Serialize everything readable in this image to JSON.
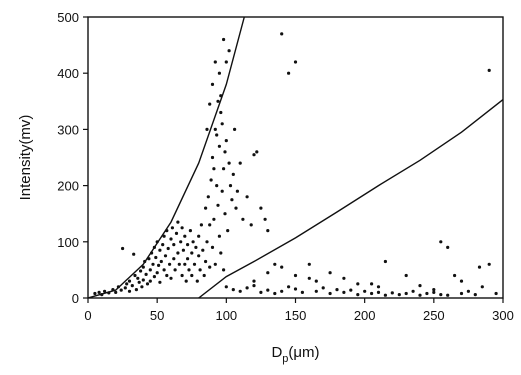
{
  "chart_data": {
    "type": "scatter",
    "title": "",
    "xlabel": "D",
    "xlabel_sub": "p",
    "xlabel_unit": "(μm)",
    "ylabel": "Intensity(mv)",
    "xlim": [
      0,
      300
    ],
    "ylim": [
      0,
      500
    ],
    "xticks": [
      0,
      50,
      100,
      150,
      200,
      250,
      300
    ],
    "yticks": [
      0,
      100,
      200,
      300,
      400,
      500
    ],
    "grid": false,
    "legend": "none",
    "colors": {
      "points": "#111111",
      "curves": "#111111",
      "axes": "#111111"
    },
    "curves": [
      {
        "x": [
          0,
          20,
          40,
          60,
          80,
          100,
          113
        ],
        "y": [
          0,
          14,
          60,
          135,
          240,
          380,
          500
        ]
      },
      {
        "x": [
          80,
          100,
          120,
          150,
          180,
          210,
          240,
          270,
          300
        ],
        "y": [
          0,
          38,
          65,
          107,
          153,
          200,
          245,
          295,
          353
        ]
      }
    ],
    "series": [
      {
        "description": "scatter points (dense cluster near origin, sparse band up to 300 μm)",
        "points": [
          [
            5,
            8
          ],
          [
            8,
            10
          ],
          [
            10,
            6
          ],
          [
            12,
            12
          ],
          [
            15,
            9
          ],
          [
            18,
            15
          ],
          [
            20,
            10
          ],
          [
            22,
            20
          ],
          [
            24,
            14
          ],
          [
            25,
            88
          ],
          [
            27,
            18
          ],
          [
            28,
            25
          ],
          [
            30,
            12
          ],
          [
            30,
            30
          ],
          [
            32,
            22
          ],
          [
            33,
            78
          ],
          [
            34,
            40
          ],
          [
            35,
            15
          ],
          [
            36,
            35
          ],
          [
            37,
            28
          ],
          [
            38,
            48
          ],
          [
            39,
            20
          ],
          [
            40,
            55
          ],
          [
            40,
            32
          ],
          [
            41,
            65
          ],
          [
            42,
            42
          ],
          [
            43,
            25
          ],
          [
            44,
            70
          ],
          [
            45,
            50
          ],
          [
            45,
            30
          ],
          [
            46,
            80
          ],
          [
            47,
            60
          ],
          [
            48,
            38
          ],
          [
            48,
            90
          ],
          [
            49,
            72
          ],
          [
            50,
            45
          ],
          [
            50,
            100
          ],
          [
            51,
            58
          ],
          [
            52,
            85
          ],
          [
            52,
            28
          ],
          [
            53,
            65
          ],
          [
            54,
            95
          ],
          [
            55,
            50
          ],
          [
            55,
            110
          ],
          [
            56,
            75
          ],
          [
            57,
            40
          ],
          [
            57,
            120
          ],
          [
            58,
            88
          ],
          [
            59,
            60
          ],
          [
            60,
            105
          ],
          [
            60,
            35
          ],
          [
            61,
            125
          ],
          [
            62,
            70
          ],
          [
            62,
            95
          ],
          [
            63,
            50
          ],
          [
            64,
            115
          ],
          [
            65,
            80
          ],
          [
            65,
            135
          ],
          [
            66,
            60
          ],
          [
            67,
            100
          ],
          [
            68,
            40
          ],
          [
            68,
            125
          ],
          [
            69,
            85
          ],
          [
            70,
            60
          ],
          [
            70,
            110
          ],
          [
            71,
            30
          ],
          [
            72,
            95
          ],
          [
            72,
            70
          ],
          [
            73,
            50
          ],
          [
            74,
            120
          ],
          [
            75,
            80
          ],
          [
            75,
            40
          ],
          [
            76,
            100
          ],
          [
            77,
            60
          ],
          [
            78,
            90
          ],
          [
            79,
            30
          ],
          [
            80,
            75
          ],
          [
            80,
            110
          ],
          [
            81,
            50
          ],
          [
            82,
            130
          ],
          [
            83,
            85
          ],
          [
            84,
            40
          ],
          [
            85,
            65
          ],
          [
            85,
            160
          ],
          [
            86,
            100
          ],
          [
            87,
            180
          ],
          [
            88,
            130
          ],
          [
            88,
            55
          ],
          [
            89,
            210
          ],
          [
            90,
            250
          ],
          [
            90,
            90
          ],
          [
            91,
            140
          ],
          [
            92,
            300
          ],
          [
            92,
            60
          ],
          [
            93,
            200
          ],
          [
            94,
            165
          ],
          [
            95,
            270
          ],
          [
            95,
            110
          ],
          [
            96,
            330
          ],
          [
            96,
            80
          ],
          [
            97,
            190
          ],
          [
            98,
            230
          ],
          [
            98,
            50
          ],
          [
            99,
            150
          ],
          [
            100,
            280
          ],
          [
            100,
            420
          ],
          [
            101,
            120
          ],
          [
            102,
            240
          ],
          [
            103,
            200
          ],
          [
            104,
            175
          ],
          [
            105,
            220
          ],
          [
            106,
            300
          ],
          [
            107,
            160
          ],
          [
            108,
            190
          ],
          [
            110,
            240
          ],
          [
            112,
            140
          ],
          [
            115,
            180
          ],
          [
            118,
            130
          ],
          [
            120,
            255
          ],
          [
            122,
            260
          ],
          [
            125,
            160
          ],
          [
            128,
            140
          ],
          [
            130,
            120
          ],
          [
            135,
            60
          ],
          [
            140,
            470
          ],
          [
            145,
            400
          ],
          [
            150,
            420
          ],
          [
            98,
            460
          ],
          [
            102,
            440
          ],
          [
            95,
            400
          ],
          [
            96,
            360
          ],
          [
            92,
            420
          ],
          [
            94,
            350
          ],
          [
            97,
            310
          ],
          [
            90,
            380
          ],
          [
            88,
            345
          ],
          [
            93,
            290
          ],
          [
            99,
            260
          ],
          [
            86,
            300
          ],
          [
            91,
            230
          ],
          [
            100,
            20
          ],
          [
            105,
            15
          ],
          [
            110,
            12
          ],
          [
            115,
            18
          ],
          [
            120,
            22
          ],
          [
            125,
            10
          ],
          [
            130,
            14
          ],
          [
            135,
            8
          ],
          [
            140,
            12
          ],
          [
            145,
            20
          ],
          [
            150,
            16
          ],
          [
            155,
            10
          ],
          [
            160,
            35
          ],
          [
            165,
            12
          ],
          [
            170,
            18
          ],
          [
            175,
            8
          ],
          [
            180,
            15
          ],
          [
            185,
            10
          ],
          [
            190,
            14
          ],
          [
            195,
            6
          ],
          [
            200,
            12
          ],
          [
            205,
            8
          ],
          [
            210,
            10
          ],
          [
            215,
            5
          ],
          [
            220,
            9
          ],
          [
            225,
            6
          ],
          [
            230,
            8
          ],
          [
            235,
            12
          ],
          [
            240,
            5
          ],
          [
            245,
            8
          ],
          [
            250,
            10
          ],
          [
            255,
            6
          ],
          [
            260,
            5
          ],
          [
            265,
            40
          ],
          [
            270,
            8
          ],
          [
            275,
            12
          ],
          [
            280,
            6
          ],
          [
            285,
            20
          ],
          [
            290,
            405
          ],
          [
            295,
            8
          ],
          [
            160,
            60
          ],
          [
            175,
            45
          ],
          [
            205,
            25
          ],
          [
            215,
            65
          ],
          [
            230,
            40
          ],
          [
            255,
            100
          ],
          [
            260,
            90
          ],
          [
            270,
            30
          ],
          [
            283,
            55
          ],
          [
            290,
            60
          ],
          [
            120,
            30
          ],
          [
            130,
            45
          ],
          [
            140,
            55
          ],
          [
            150,
            40
          ],
          [
            165,
            30
          ],
          [
            185,
            35
          ],
          [
            195,
            25
          ],
          [
            210,
            20
          ],
          [
            240,
            22
          ],
          [
            250,
            15
          ]
        ]
      }
    ]
  }
}
